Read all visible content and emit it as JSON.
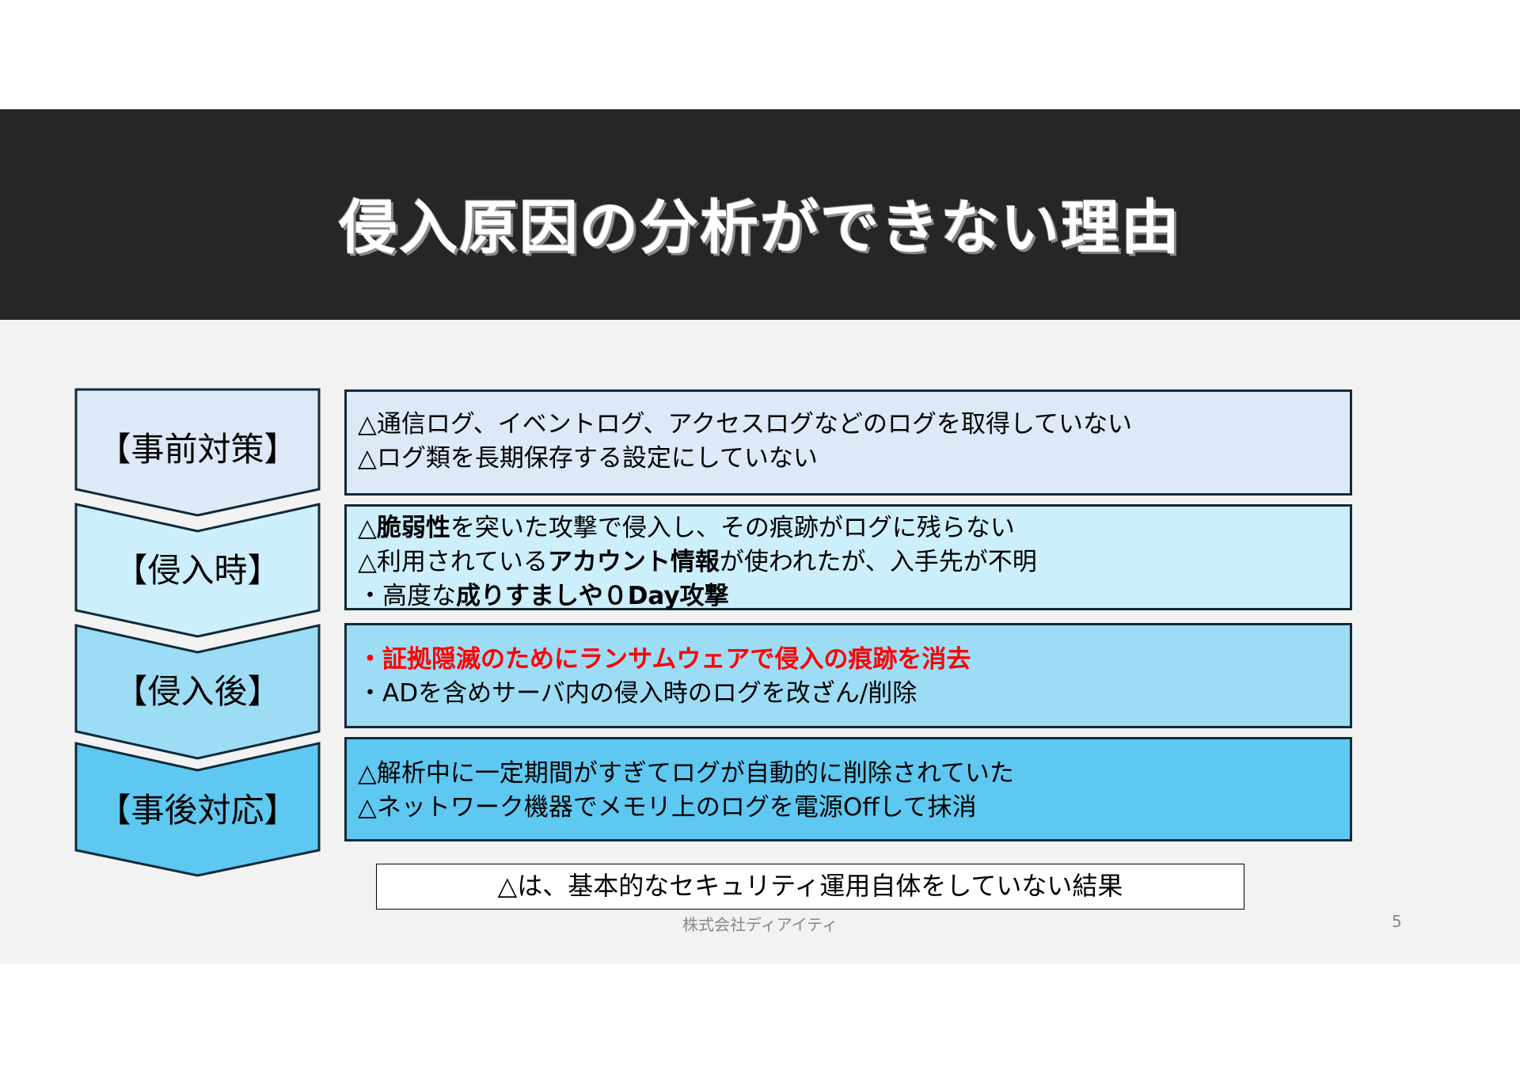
{
  "title": "侵入原因の分析ができない理由",
  "colors": {
    "header": "#262626",
    "background": "#f2f2f2",
    "border": "#0f2a3a",
    "accent_red": "#ff0000",
    "stage1": "#dde9f6",
    "stage2": "#cdeefb",
    "stage3": "#9ddcf5",
    "stage4": "#5ec8f1"
  },
  "stages": [
    {
      "label": "【事前対策】",
      "lines": [
        [
          {
            "t": "△通信ログ、イベントログ、アクセスログなどのログを取得していない"
          }
        ],
        [
          {
            "t": "△ログ類を長期保存する設定にしていない"
          }
        ]
      ]
    },
    {
      "label": "【侵入時】",
      "lines": [
        [
          {
            "t": "△"
          },
          {
            "t": "脆弱性",
            "b": true
          },
          {
            "t": "を突いた攻撃で侵入し、その痕跡がログに残らない"
          }
        ],
        [
          {
            "t": "△利用されている"
          },
          {
            "t": "アカウント情報",
            "b": true
          },
          {
            "t": "が使われたが、入手先が不明"
          }
        ],
        [
          {
            "t": "・高度な"
          },
          {
            "t": "成りすましや０Day攻撃",
            "b": true
          }
        ]
      ]
    },
    {
      "label": "【侵入後】",
      "lines": [
        [
          {
            "t": "・証拠隠滅のためにランサムウェアで侵入の痕跡を消去",
            "red": true
          }
        ],
        [
          {
            "t": "・ADを含めサーバ内の侵入時のログを改ざん/削除"
          }
        ]
      ]
    },
    {
      "label": "【事後対応】",
      "lines": [
        [
          {
            "t": "△解析中に一定期間がすぎてログが自動的に削除されていた"
          }
        ],
        [
          {
            "t": "△ネットワーク機器でメモリ上のログを電源Offして抹消"
          }
        ]
      ]
    }
  ],
  "note": "△は、基本的なセキュリティ運用自体をしていない結果",
  "footer": "株式会社ディアイティ",
  "page_number": "5"
}
